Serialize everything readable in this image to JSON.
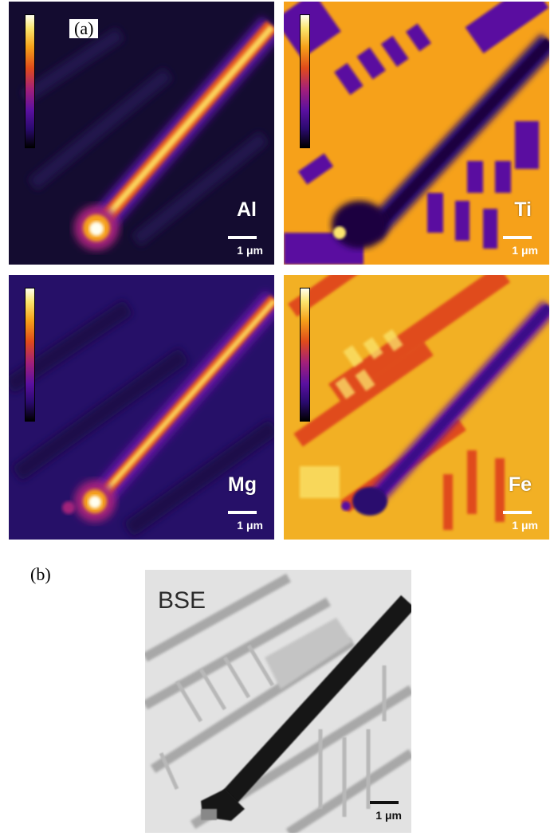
{
  "panel_a": {
    "tag": "(a)",
    "maps": [
      {
        "id": "al",
        "element": "Al",
        "scale": "1 μm"
      },
      {
        "id": "ti",
        "element": "Ti",
        "scale": "1 μm"
      },
      {
        "id": "mg",
        "element": "Mg",
        "scale": "1 μm"
      },
      {
        "id": "fe",
        "element": "Fe",
        "scale": "1 μm"
      }
    ]
  },
  "panel_b": {
    "tag": "(b)",
    "title": "BSE",
    "scale": "1 μm"
  },
  "colors": {
    "colormap": [
      "#000000",
      "#2a0a6e",
      "#5a10a0",
      "#a3207a",
      "#e04b1b",
      "#f6a11a",
      "#fbe56d",
      "#fffff0"
    ],
    "bse_background": "#d4d4d4",
    "bse_needle": "#111111"
  }
}
